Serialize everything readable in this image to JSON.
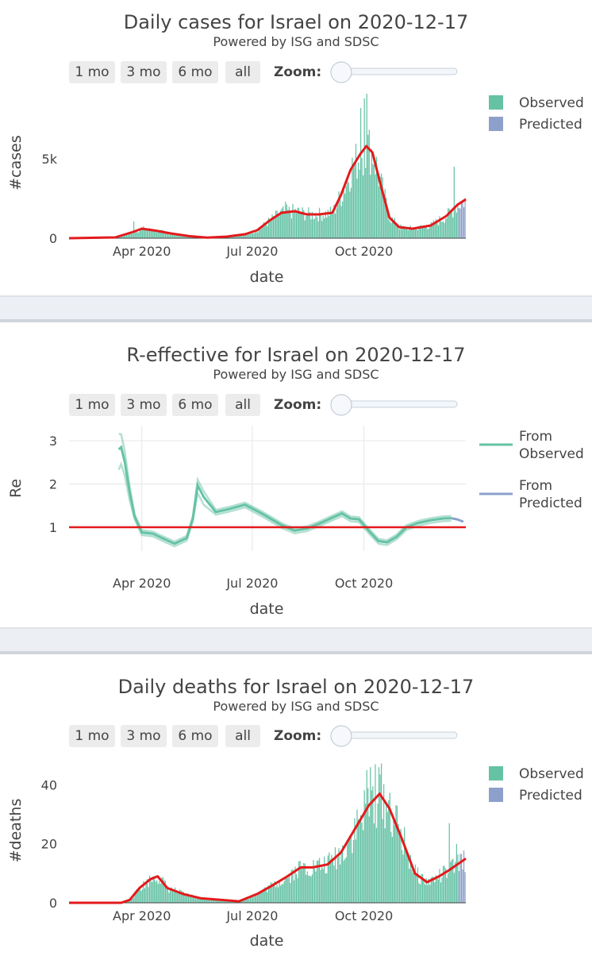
{
  "controls": {
    "buttons": [
      "1 mo",
      "3 mo",
      "6 mo",
      "all"
    ],
    "zoom_label": "Zoom:"
  },
  "colors": {
    "observed": "#66c2a5",
    "predicted": "#8da0cb",
    "trend": "#e31a1c",
    "reference": "#e31a1c"
  },
  "chart_data": [
    {
      "type": "bar",
      "title": "Daily cases for Israel on 2020-12-17",
      "subtitle": "Powered by ISG and SDSC",
      "xlabel": "date",
      "ylabel": "#cases",
      "x_range": [
        "2020-02-01",
        "2020-12-24"
      ],
      "ylim": [
        0,
        9500
      ],
      "y_ticks": [
        0,
        5000
      ],
      "y_tick_labels": [
        "0",
        "5k"
      ],
      "x_ticks": [
        "2020-04-01",
        "2020-07-01",
        "2020-10-01"
      ],
      "x_tick_labels": [
        "Apr 2020",
        "Jul 2020",
        "Oct 2020"
      ],
      "grid": false,
      "legend": {
        "position": "top-right",
        "entries": [
          "Observed",
          "Predicted"
        ]
      },
      "observed_until": "2020-12-17",
      "trend_points": [
        [
          "2020-02-01",
          0
        ],
        [
          "2020-03-10",
          50
        ],
        [
          "2020-03-25",
          400
        ],
        [
          "2020-04-01",
          600
        ],
        [
          "2020-04-12",
          480
        ],
        [
          "2020-04-25",
          300
        ],
        [
          "2020-05-10",
          130
        ],
        [
          "2020-05-25",
          40
        ],
        [
          "2020-06-10",
          100
        ],
        [
          "2020-06-25",
          250
        ],
        [
          "2020-07-05",
          500
        ],
        [
          "2020-07-15",
          1100
        ],
        [
          "2020-07-25",
          1600
        ],
        [
          "2020-08-05",
          1700
        ],
        [
          "2020-08-15",
          1500
        ],
        [
          "2020-08-25",
          1500
        ],
        [
          "2020-09-05",
          1600
        ],
        [
          "2020-09-12",
          2700
        ],
        [
          "2020-09-20",
          4300
        ],
        [
          "2020-09-28",
          5300
        ],
        [
          "2020-10-03",
          5800
        ],
        [
          "2020-10-08",
          5400
        ],
        [
          "2020-10-15",
          3300
        ],
        [
          "2020-10-22",
          1300
        ],
        [
          "2020-10-30",
          700
        ],
        [
          "2020-11-10",
          600
        ],
        [
          "2020-11-25",
          800
        ],
        [
          "2020-12-08",
          1400
        ],
        [
          "2020-12-17",
          2100
        ],
        [
          "2020-12-24",
          2450
        ]
      ],
      "spikes": [
        [
          "2020-03-25",
          1050
        ],
        [
          "2020-07-28",
          2300
        ],
        [
          "2020-09-28",
          8200
        ],
        [
          "2020-10-01",
          8800
        ],
        [
          "2020-10-03",
          9100
        ],
        [
          "2020-12-14",
          4500
        ]
      ]
    },
    {
      "type": "line",
      "title": "R-effective for Israel on 2020-12-17",
      "subtitle": "Powered by ISG and SDSC",
      "xlabel": "date",
      "ylabel": "Re",
      "x_range": [
        "2020-02-01",
        "2020-12-24"
      ],
      "ylim": [
        0.45,
        3.35
      ],
      "y_ticks": [
        1,
        2,
        3
      ],
      "y_tick_labels": [
        "1",
        "2",
        "3"
      ],
      "x_ticks": [
        "2020-04-01",
        "2020-07-01",
        "2020-10-01"
      ],
      "x_tick_labels": [
        "Apr 2020",
        "Jul 2020",
        "Oct 2020"
      ],
      "grid": true,
      "legend": {
        "position": "top-right",
        "entries": [
          "From\nObserved",
          "From\nPredicted"
        ]
      },
      "reference_line": 1,
      "series": [
        {
          "kind": "observed",
          "x": [
            "2020-03-13",
            "2020-03-15",
            "2020-03-18",
            "2020-03-22",
            "2020-03-26",
            "2020-04-01",
            "2020-04-10",
            "2020-04-20",
            "2020-04-28",
            "2020-05-08",
            "2020-05-13",
            "2020-05-17",
            "2020-05-22",
            "2020-06-01",
            "2020-06-12",
            "2020-06-25",
            "2020-07-10",
            "2020-07-25",
            "2020-08-05",
            "2020-08-15",
            "2020-08-25",
            "2020-09-05",
            "2020-09-13",
            "2020-09-20",
            "2020-09-27",
            "2020-10-05",
            "2020-10-13",
            "2020-10-20",
            "2020-10-28",
            "2020-11-05",
            "2020-11-15",
            "2020-11-25",
            "2020-12-05",
            "2020-12-12"
          ],
          "y": [
            2.8,
            2.85,
            2.5,
            1.8,
            1.25,
            0.88,
            0.85,
            0.72,
            0.62,
            0.75,
            1.2,
            1.97,
            1.7,
            1.35,
            1.42,
            1.52,
            1.3,
            1.05,
            0.92,
            0.97,
            1.08,
            1.22,
            1.32,
            1.2,
            1.18,
            0.92,
            0.68,
            0.65,
            0.78,
            1.0,
            1.1,
            1.16,
            1.2,
            1.21
          ]
        },
        {
          "kind": "predicted",
          "x": [
            "2020-12-12",
            "2020-12-17",
            "2020-12-22"
          ],
          "y": [
            1.21,
            1.18,
            1.13
          ]
        }
      ]
    },
    {
      "type": "bar",
      "title": "Daily deaths for Israel on 2020-12-17",
      "subtitle": "Powered by ISG and SDSC",
      "xlabel": "date",
      "ylabel": "#deaths",
      "x_range": [
        "2020-02-01",
        "2020-12-24"
      ],
      "ylim": [
        0,
        49
      ],
      "y_ticks": [
        0,
        20,
        40
      ],
      "y_tick_labels": [
        "0",
        "20",
        "40"
      ],
      "x_ticks": [
        "2020-04-01",
        "2020-07-01",
        "2020-10-01"
      ],
      "x_tick_labels": [
        "Apr 2020",
        "Jul 2020",
        "Oct 2020"
      ],
      "grid": false,
      "legend": {
        "position": "top-right",
        "entries": [
          "Observed",
          "Predicted"
        ]
      },
      "observed_until": "2020-12-17",
      "trend_points": [
        [
          "2020-02-01",
          0
        ],
        [
          "2020-03-15",
          0
        ],
        [
          "2020-03-22",
          1
        ],
        [
          "2020-03-30",
          5
        ],
        [
          "2020-04-08",
          8
        ],
        [
          "2020-04-14",
          9
        ],
        [
          "2020-04-22",
          5
        ],
        [
          "2020-05-05",
          3
        ],
        [
          "2020-05-20",
          1.5
        ],
        [
          "2020-06-05",
          1
        ],
        [
          "2020-06-20",
          0.5
        ],
        [
          "2020-07-05",
          3
        ],
        [
          "2020-07-18",
          6
        ],
        [
          "2020-07-30",
          9
        ],
        [
          "2020-08-10",
          12
        ],
        [
          "2020-08-20",
          12
        ],
        [
          "2020-09-01",
          13
        ],
        [
          "2020-09-12",
          17
        ],
        [
          "2020-09-25",
          26
        ],
        [
          "2020-10-05",
          33
        ],
        [
          "2020-10-14",
          37
        ],
        [
          "2020-10-22",
          32
        ],
        [
          "2020-11-01",
          22
        ],
        [
          "2020-11-12",
          10
        ],
        [
          "2020-11-22",
          7
        ],
        [
          "2020-12-02",
          9
        ],
        [
          "2020-12-10",
          11
        ],
        [
          "2020-12-17",
          13
        ],
        [
          "2020-12-24",
          15
        ]
      ],
      "spikes": [
        [
          "2020-10-03",
          45
        ],
        [
          "2020-10-06",
          46
        ],
        [
          "2020-10-10",
          47
        ],
        [
          "2020-10-13",
          46
        ],
        [
          "2020-12-10",
          27
        ],
        [
          "2020-12-16",
          20
        ]
      ]
    }
  ]
}
